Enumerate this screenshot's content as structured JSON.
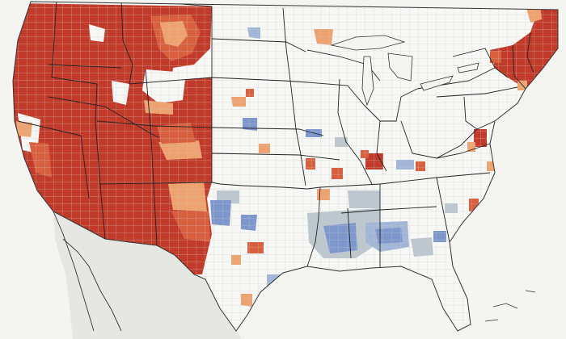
{
  "map": {
    "colors": {
      "background": "#f4f4f1",
      "mexico_land": "#e6e6e3",
      "us_land": "#f7f7f5",
      "county_lines": "#c9c9c6",
      "state_borders": "#222222",
      "coast_lines": "#333333",
      "dark_red": "#c23a2a",
      "medium_red": "#d9603f",
      "light_orange": "#eea26f",
      "grey_blue": "#bcc7cf",
      "light_blue": "#a3b6d8",
      "medium_blue": "#7e98cd"
    }
  }
}
